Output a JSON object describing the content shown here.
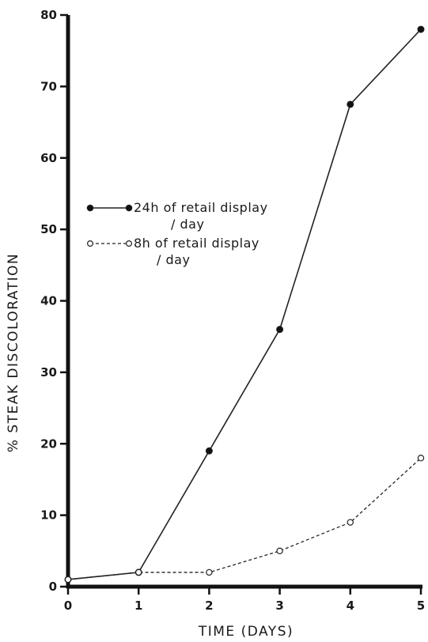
{
  "chart_data": {
    "type": "line",
    "xlabel": "TIME (DAYS)",
    "ylabel": "% STEAK DISCOLORATION",
    "xlim": [
      0,
      5
    ],
    "ylim": [
      0,
      80
    ],
    "x_ticks": [
      0,
      1,
      2,
      3,
      4,
      5
    ],
    "y_ticks": [
      0,
      10,
      20,
      30,
      40,
      50,
      60,
      70,
      80
    ],
    "grid": false,
    "legend_position": "upper-left",
    "series": [
      {
        "name": "24h of retail display / day",
        "legend_lines": [
          "24h of retail display",
          "/ day"
        ],
        "marker": "filled-circle",
        "line_style": "solid",
        "x": [
          0,
          1,
          2,
          3,
          4,
          5
        ],
        "values": [
          1,
          2,
          19,
          36,
          67.5,
          78
        ]
      },
      {
        "name": "8h of retail display / day",
        "legend_lines": [
          "8h of retail display",
          "/ day"
        ],
        "marker": "open-circle",
        "line_style": "dashed",
        "x": [
          0,
          1,
          2,
          3,
          4,
          5
        ],
        "values": [
          1,
          2,
          2,
          5,
          9,
          18
        ]
      }
    ]
  }
}
